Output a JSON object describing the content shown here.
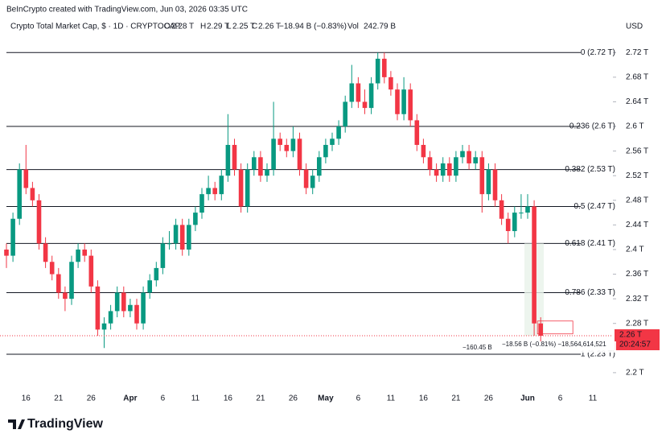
{
  "chart_data": {
    "type": "candlestick",
    "credit": "BeInCrypto created with TradingView.com, Jun 03, 2026 03:35 UTC",
    "title": "Crypto Total Market Cap, $ · 1D · CRYPTOCAP",
    "legend_values": [
      {
        "key": "O",
        "value": "2.28 T"
      },
      {
        "key": "H",
        "value": "2.29 T"
      },
      {
        "key": "L",
        "value": "2.25 T"
      },
      {
        "key": "C",
        "value": "2.26 T"
      },
      {
        "key": "",
        "value": "−18.94 B (−0.83%)"
      },
      {
        "key": "Vol",
        "value": "242.79 B"
      }
    ],
    "currency": "USD",
    "up_color": "#089981",
    "down_color": "#f23645",
    "categories": [
      null,
      null,
      null,
      "16",
      null,
      null,
      null,
      null,
      "21",
      null,
      null,
      null,
      null,
      "26",
      null,
      null,
      null,
      null,
      null,
      "Apr",
      null,
      null,
      null,
      null,
      "6",
      null,
      null,
      null,
      null,
      "11",
      null,
      null,
      null,
      null,
      "16",
      null,
      null,
      null,
      null,
      "21",
      null,
      null,
      null,
      null,
      "26",
      null,
      null,
      null,
      null,
      "May",
      null,
      null,
      null,
      null,
      "6",
      null,
      null,
      null,
      null,
      "11",
      null,
      null,
      null,
      null,
      "16",
      null,
      null,
      null,
      null,
      "21",
      null,
      null,
      null,
      null,
      "26",
      null,
      null,
      null,
      null,
      null,
      "Jun",
      null,
      null,
      null,
      null,
      "6",
      null,
      null,
      null,
      null,
      "11",
      null,
      null
    ],
    "open": [
      2.4,
      2.39,
      2.45,
      2.53,
      2.5,
      2.48,
      2.41,
      2.38,
      2.36,
      2.33,
      2.32,
      2.38,
      2.4,
      2.39,
      2.34,
      2.27,
      2.28,
      2.3,
      2.33,
      2.3,
      2.31,
      2.28,
      2.33,
      2.35,
      2.37,
      2.41,
      2.41,
      2.44,
      2.4,
      2.44,
      2.46,
      2.49,
      2.5,
      2.49,
      2.52,
      2.57,
      2.53,
      2.47,
      2.53,
      2.55,
      2.52,
      2.53,
      2.58,
      2.57,
      2.56,
      2.58,
      2.53,
      2.5,
      2.52,
      2.55,
      2.57,
      2.58,
      2.6,
      2.64,
      2.67,
      2.64,
      2.63,
      2.67,
      2.71,
      2.68,
      2.66,
      2.62,
      2.66,
      2.61,
      2.57,
      2.55,
      2.53,
      2.52,
      2.54,
      2.52,
      2.55,
      2.56,
      2.54,
      2.55,
      2.49,
      2.53,
      2.48,
      2.45,
      2.43,
      2.46,
      2.46,
      2.47,
      2.28,
      null,
      null,
      null,
      null,
      null,
      null,
      null,
      null,
      null,
      null
    ],
    "high": [
      2.41,
      2.46,
      2.54,
      2.57,
      2.51,
      2.49,
      2.42,
      2.39,
      2.37,
      2.34,
      2.39,
      2.41,
      2.41,
      2.4,
      2.35,
      2.29,
      2.31,
      2.34,
      2.34,
      2.32,
      2.32,
      2.34,
      2.36,
      2.38,
      2.42,
      2.43,
      2.45,
      2.45,
      2.45,
      2.47,
      2.5,
      2.52,
      2.51,
      2.53,
      2.62,
      2.58,
      2.54,
      2.54,
      2.56,
      2.56,
      2.54,
      2.64,
      2.59,
      2.58,
      2.6,
      2.59,
      2.54,
      2.53,
      2.56,
      2.58,
      2.59,
      2.61,
      2.65,
      2.7,
      2.68,
      2.66,
      2.68,
      2.72,
      2.72,
      2.69,
      2.67,
      2.68,
      2.67,
      2.62,
      2.58,
      2.56,
      2.54,
      2.55,
      2.55,
      2.56,
      2.57,
      2.57,
      2.56,
      2.56,
      2.54,
      2.54,
      2.49,
      2.46,
      2.47,
      2.49,
      2.49,
      2.48,
      2.29,
      null,
      null,
      null,
      null,
      null,
      null,
      null,
      null,
      null,
      null
    ],
    "low": [
      2.37,
      2.38,
      2.44,
      2.49,
      2.47,
      2.4,
      2.37,
      2.35,
      2.32,
      2.3,
      2.31,
      2.37,
      2.38,
      2.33,
      2.26,
      2.24,
      2.27,
      2.29,
      2.29,
      2.29,
      2.27,
      2.27,
      2.32,
      2.34,
      2.36,
      2.4,
      2.4,
      2.39,
      2.39,
      2.43,
      2.45,
      2.48,
      2.48,
      2.48,
      2.51,
      2.52,
      2.46,
      2.46,
      2.52,
      2.51,
      2.51,
      2.52,
      2.56,
      2.55,
      2.55,
      2.52,
      2.49,
      2.49,
      2.51,
      2.54,
      2.56,
      2.57,
      2.59,
      2.63,
      2.63,
      2.62,
      2.62,
      2.66,
      2.67,
      2.65,
      2.61,
      2.61,
      2.6,
      2.56,
      2.54,
      2.52,
      2.51,
      2.51,
      2.51,
      2.51,
      2.54,
      2.53,
      2.53,
      2.46,
      2.48,
      2.47,
      2.44,
      2.41,
      2.42,
      2.45,
      2.45,
      2.26,
      2.25,
      null,
      null,
      null,
      null,
      null,
      null,
      null,
      null,
      null,
      null
    ],
    "close": [
      2.39,
      2.45,
      2.53,
      2.5,
      2.48,
      2.41,
      2.38,
      2.36,
      2.33,
      2.32,
      2.38,
      2.4,
      2.39,
      2.34,
      2.27,
      2.28,
      2.3,
      2.33,
      2.3,
      2.31,
      2.28,
      2.33,
      2.35,
      2.37,
      2.41,
      2.41,
      2.44,
      2.4,
      2.44,
      2.46,
      2.49,
      2.5,
      2.49,
      2.52,
      2.57,
      2.53,
      2.47,
      2.53,
      2.55,
      2.52,
      2.53,
      2.58,
      2.57,
      2.56,
      2.58,
      2.53,
      2.5,
      2.52,
      2.55,
      2.57,
      2.58,
      2.6,
      2.64,
      2.67,
      2.64,
      2.63,
      2.67,
      2.71,
      2.68,
      2.66,
      2.62,
      2.66,
      2.61,
      2.57,
      2.55,
      2.53,
      2.52,
      2.54,
      2.52,
      2.55,
      2.56,
      2.54,
      2.55,
      2.49,
      2.53,
      2.48,
      2.45,
      2.43,
      2.46,
      2.46,
      2.47,
      2.28,
      2.26,
      null,
      null,
      null,
      null,
      null,
      null,
      null,
      null,
      null,
      null
    ],
    "ylim": [
      2.175,
      2.74
    ],
    "yticks": [
      {
        "value": 2.72,
        "label": "2.72 T"
      },
      {
        "value": 2.68,
        "label": "2.68 T"
      },
      {
        "value": 2.64,
        "label": "2.64 T"
      },
      {
        "value": 2.6,
        "label": "2.6 T"
      },
      {
        "value": 2.56,
        "label": "2.56 T"
      },
      {
        "value": 2.52,
        "label": "2.52 T"
      },
      {
        "value": 2.48,
        "label": "2.48 T"
      },
      {
        "value": 2.44,
        "label": "2.44 T"
      },
      {
        "value": 2.4,
        "label": "2.4 T"
      },
      {
        "value": 2.36,
        "label": "2.36 T"
      },
      {
        "value": 2.32,
        "label": "2.32 T"
      },
      {
        "value": 2.28,
        "label": "2.28 T"
      },
      {
        "value": 2.2,
        "label": "2.2 T"
      }
    ],
    "fib_levels": [
      {
        "value": 2.72,
        "label": "0 (2.72 T)"
      },
      {
        "value": 2.6,
        "label": "0.236 (2.6 T)"
      },
      {
        "value": 2.53,
        "label": "0.382 (2.53 T)"
      },
      {
        "value": 2.47,
        "label": "0.5 (2.47 T)"
      },
      {
        "value": 2.41,
        "label": "0.618 (2.41 T)"
      },
      {
        "value": 2.33,
        "label": "0.786 (2.33 T)"
      },
      {
        "value": 2.23,
        "label": "1 (2.23 T)"
      }
    ],
    "last_price": {
      "value": 2.26,
      "label": "2.26 T"
    },
    "countdown": "20:24:57",
    "measure_labels": [
      "−160.45 B",
      "−18.56 B (−0.81%) −18,564,614,521"
    ],
    "logo": "TradingView"
  }
}
